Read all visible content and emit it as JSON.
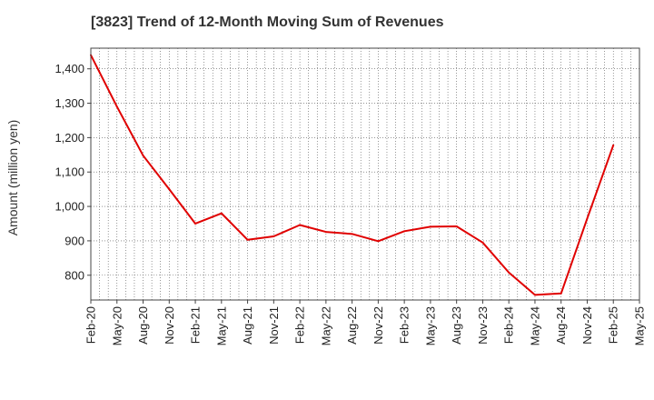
{
  "chart_data": {
    "type": "line",
    "title": "[3823]  Trend of 12-Month Moving Sum of Revenues",
    "xlabel": "",
    "ylabel": "Amount (million yen)",
    "x_tick_labels": [
      "Feb-20",
      "May-20",
      "Aug-20",
      "Nov-20",
      "Feb-21",
      "May-21",
      "Aug-21",
      "Nov-21",
      "Feb-22",
      "May-22",
      "Aug-22",
      "Nov-22",
      "Feb-23",
      "May-23",
      "Aug-23",
      "Nov-23",
      "Feb-24",
      "May-24",
      "Aug-24",
      "Nov-24",
      "Feb-25",
      "May-25"
    ],
    "y_ticks": [
      800,
      900,
      1000,
      1100,
      1200,
      1300,
      1400
    ],
    "y_tick_labels": [
      "800",
      "900",
      "1,000",
      "1,100",
      "1,200",
      "1,300",
      "1,400"
    ],
    "ylim": [
      728,
      1460
    ],
    "grid": true,
    "series": [
      {
        "color": "#e00000",
        "values": [
          {
            "x": "Feb-20",
            "y": 1440
          },
          {
            "x": "May-20",
            "y": 1290
          },
          {
            "x": "Aug-20",
            "y": 1148
          },
          {
            "x": "Nov-20",
            "y": 1050
          },
          {
            "x": "Feb-21",
            "y": 950
          },
          {
            "x": "May-21",
            "y": 980
          },
          {
            "x": "Aug-21",
            "y": 903
          },
          {
            "x": "Nov-21",
            "y": 913
          },
          {
            "x": "Feb-22",
            "y": 946
          },
          {
            "x": "May-22",
            "y": 926
          },
          {
            "x": "Aug-22",
            "y": 920
          },
          {
            "x": "Nov-22",
            "y": 899
          },
          {
            "x": "Feb-23",
            "y": 928
          },
          {
            "x": "May-23",
            "y": 941
          },
          {
            "x": "Aug-23",
            "y": 942
          },
          {
            "x": "Nov-23",
            "y": 895
          },
          {
            "x": "Feb-24",
            "y": 808
          },
          {
            "x": "May-24",
            "y": 743
          },
          {
            "x": "Aug-24",
            "y": 747
          },
          {
            "x": "Nov-24",
            "y": 965
          },
          {
            "x": "Feb-25",
            "y": 1178
          }
        ]
      }
    ]
  }
}
